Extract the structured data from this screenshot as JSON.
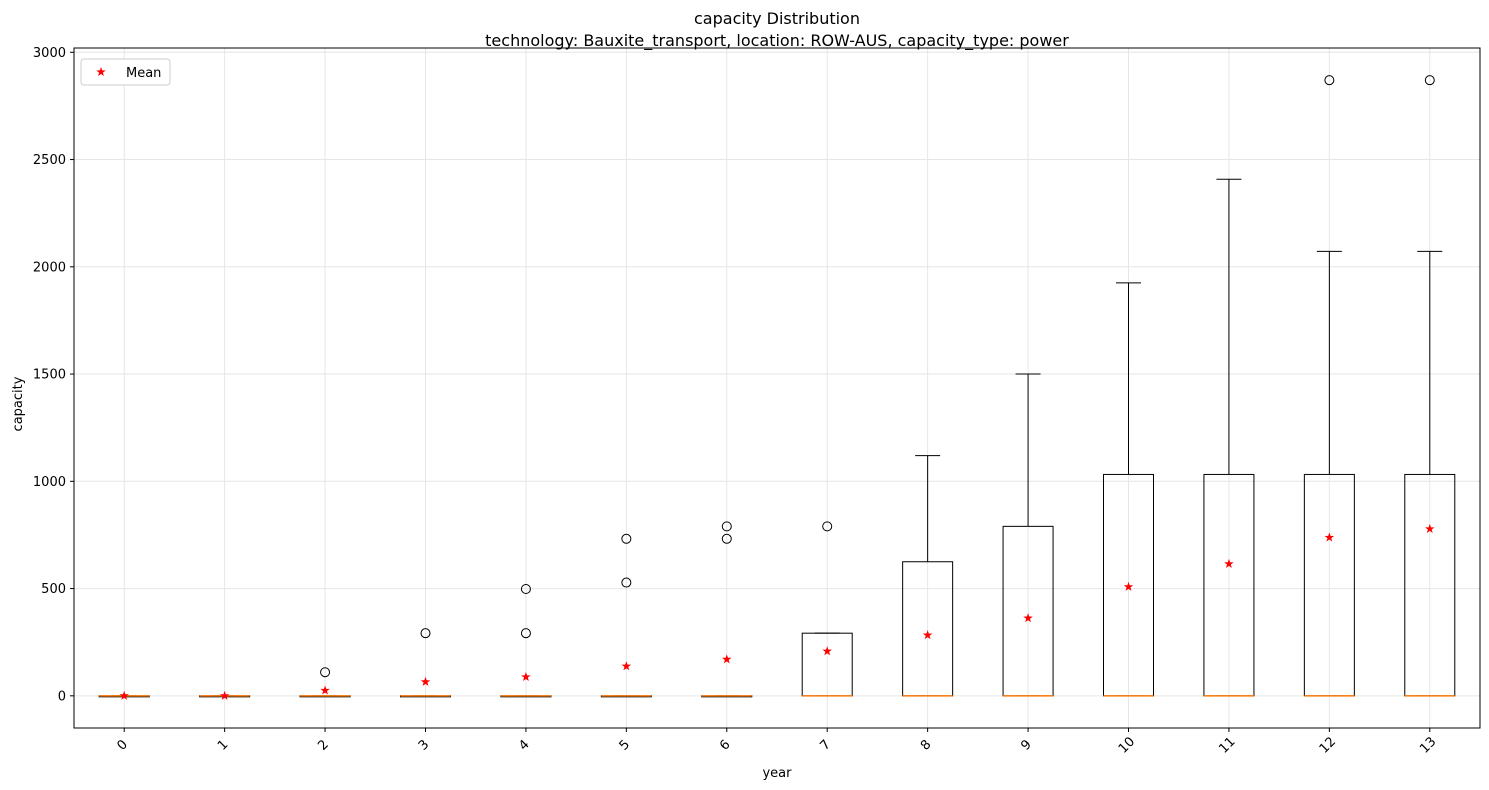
{
  "chart_data": {
    "type": "box",
    "title": "capacity Distribution",
    "subtitle": "technology: Bauxite_transport, location: ROW-AUS, capacity_type: power",
    "xlabel": "year",
    "ylabel": "capacity",
    "ylim": [
      -150,
      3020
    ],
    "yticks": [
      0,
      500,
      1000,
      1500,
      2000,
      2500,
      3000
    ],
    "grid": true,
    "legend": {
      "position": "top-left",
      "entries": [
        {
          "label": "Mean",
          "marker": "star",
          "color": "#ff0000"
        }
      ]
    },
    "colors": {
      "box": "#000000",
      "median": "#ff7f0e",
      "mean": "#ff0000",
      "grid": "#e6e6e6"
    },
    "categories": [
      "0",
      "1",
      "2",
      "3",
      "4",
      "5",
      "6",
      "7",
      "8",
      "9",
      "10",
      "11",
      "12",
      "13"
    ],
    "boxes": [
      {
        "year": "0",
        "q1": 0,
        "median": 0,
        "q3": 0,
        "whisker_low": 0,
        "whisker_high": 0,
        "mean": 0,
        "outliers": []
      },
      {
        "year": "1",
        "q1": 0,
        "median": 0,
        "q3": 0,
        "whisker_low": 0,
        "whisker_high": 0,
        "mean": 0,
        "outliers": []
      },
      {
        "year": "2",
        "q1": 0,
        "median": 0,
        "q3": 0,
        "whisker_low": 0,
        "whisker_high": 0,
        "mean": 25,
        "outliers": [
          110
        ]
      },
      {
        "year": "3",
        "q1": 0,
        "median": 0,
        "q3": 0,
        "whisker_low": 0,
        "whisker_high": 0,
        "mean": 65,
        "outliers": [
          292
        ]
      },
      {
        "year": "4",
        "q1": 0,
        "median": 0,
        "q3": 0,
        "whisker_low": 0,
        "whisker_high": 0,
        "mean": 88,
        "outliers": [
          292,
          498
        ]
      },
      {
        "year": "5",
        "q1": 0,
        "median": 0,
        "q3": 0,
        "whisker_low": 0,
        "whisker_high": 0,
        "mean": 138,
        "outliers": [
          528,
          732
        ]
      },
      {
        "year": "6",
        "q1": 0,
        "median": 0,
        "q3": 0,
        "whisker_low": 0,
        "whisker_high": 0,
        "mean": 170,
        "outliers": [
          732,
          790
        ]
      },
      {
        "year": "7",
        "q1": 0,
        "median": 0,
        "q3": 292,
        "whisker_low": 0,
        "whisker_high": 292,
        "mean": 208,
        "outliers": [
          790
        ]
      },
      {
        "year": "8",
        "q1": 0,
        "median": 0,
        "q3": 625,
        "whisker_low": 0,
        "whisker_high": 1120,
        "mean": 283,
        "outliers": []
      },
      {
        "year": "9",
        "q1": 0,
        "median": 0,
        "q3": 790,
        "whisker_low": 0,
        "whisker_high": 1500,
        "mean": 362,
        "outliers": []
      },
      {
        "year": "10",
        "q1": 0,
        "median": 0,
        "q3": 1032,
        "whisker_low": 0,
        "whisker_high": 1925,
        "mean": 508,
        "outliers": []
      },
      {
        "year": "11",
        "q1": 0,
        "median": 0,
        "q3": 1032,
        "whisker_low": 0,
        "whisker_high": 2408,
        "mean": 615,
        "outliers": []
      },
      {
        "year": "12",
        "q1": 0,
        "median": 0,
        "q3": 1032,
        "whisker_low": 0,
        "whisker_high": 2072,
        "mean": 738,
        "outliers": [
          2870
        ]
      },
      {
        "year": "13",
        "q1": 0,
        "median": 0,
        "q3": 1032,
        "whisker_low": 0,
        "whisker_high": 2072,
        "mean": 778,
        "outliers": [
          2870
        ]
      }
    ]
  }
}
